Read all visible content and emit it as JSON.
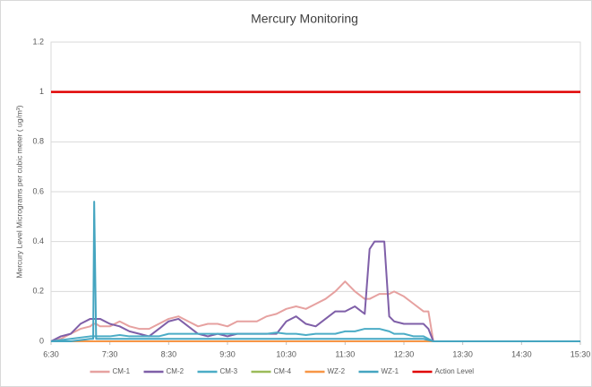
{
  "chart_data": {
    "type": "line",
    "title": "Mercury Monitoring",
    "y_label": "Mercury Level Micrograms per cubic meter ( ug/m³)",
    "x": [
      390,
      400,
      410,
      420,
      430,
      433,
      434,
      436,
      440,
      450,
      460,
      470,
      480,
      490,
      500,
      510,
      520,
      530,
      540,
      550,
      560,
      570,
      580,
      590,
      600,
      610,
      620,
      630,
      640,
      650,
      660,
      670,
      680,
      690,
      700,
      710,
      715,
      720,
      725,
      730,
      735,
      740,
      750,
      760,
      770,
      775,
      780,
      930
    ],
    "xlim": [
      390,
      930
    ],
    "xticks": [
      {
        "value": 390,
        "label": "6:30"
      },
      {
        "value": 450,
        "label": "7:30"
      },
      {
        "value": 510,
        "label": "8:30"
      },
      {
        "value": 570,
        "label": "9:30"
      },
      {
        "value": 630,
        "label": "10:30"
      },
      {
        "value": 690,
        "label": "11:30"
      },
      {
        "value": 750,
        "label": "12:30"
      },
      {
        "value": 810,
        "label": "13:30"
      },
      {
        "value": 870,
        "label": "14:30"
      },
      {
        "value": 930,
        "label": "15:30"
      }
    ],
    "ylim": [
      0,
      1.2
    ],
    "yticks": [
      0,
      0.2,
      0.4,
      0.6,
      0.8,
      1,
      1.2
    ],
    "grid": true,
    "legend": "bottom",
    "series": [
      {
        "name": "CM-1",
        "color": "#e6a1a0",
        "values": [
          0,
          0.01,
          0.03,
          0.05,
          0.06,
          0.07,
          0.07,
          0.07,
          0.06,
          0.06,
          0.08,
          0.06,
          0.05,
          0.05,
          0.07,
          0.09,
          0.1,
          0.08,
          0.06,
          0.07,
          0.07,
          0.06,
          0.08,
          0.08,
          0.08,
          0.1,
          0.11,
          0.13,
          0.14,
          0.13,
          0.15,
          0.17,
          0.2,
          0.24,
          0.2,
          0.17,
          0.17,
          0.18,
          0.19,
          0.19,
          0.19,
          0.2,
          0.18,
          0.15,
          0.12,
          0.12,
          0,
          0
        ]
      },
      {
        "name": "CM-2",
        "color": "#7f5fa8",
        "values": [
          0,
          0.02,
          0.03,
          0.07,
          0.09,
          0.09,
          0.09,
          0.09,
          0.09,
          0.07,
          0.06,
          0.04,
          0.03,
          0.02,
          0.05,
          0.08,
          0.09,
          0.06,
          0.03,
          0.02,
          0.03,
          0.02,
          0.03,
          0.03,
          0.03,
          0.03,
          0.03,
          0.08,
          0.1,
          0.07,
          0.06,
          0.09,
          0.12,
          0.12,
          0.14,
          0.11,
          0.37,
          0.4,
          0.4,
          0.4,
          0.1,
          0.08,
          0.07,
          0.07,
          0.07,
          0.05,
          0,
          0
        ]
      },
      {
        "name": "CM-3",
        "color": "#4bacc6",
        "values": [
          0,
          0.005,
          0.01,
          0.015,
          0.02,
          0.02,
          0.02,
          0.02,
          0.02,
          0.02,
          0.025,
          0.02,
          0.02,
          0.02,
          0.02,
          0.03,
          0.03,
          0.03,
          0.03,
          0.03,
          0.03,
          0.03,
          0.03,
          0.03,
          0.03,
          0.03,
          0.035,
          0.03,
          0.03,
          0.025,
          0.03,
          0.03,
          0.03,
          0.04,
          0.04,
          0.05,
          0.05,
          0.05,
          0.05,
          0.045,
          0.04,
          0.03,
          0.03,
          0.02,
          0.02,
          0.01,
          0,
          0
        ]
      },
      {
        "name": "CM-4",
        "color": "#9bbb59",
        "values": [
          0,
          0,
          0,
          0,
          0,
          0,
          0,
          0,
          0,
          0,
          0,
          0,
          0,
          0,
          0,
          0,
          0,
          0,
          0,
          0,
          0,
          0,
          0,
          0,
          0,
          0,
          0,
          0,
          0,
          0,
          0,
          0,
          0,
          0,
          0,
          0,
          0,
          0,
          0,
          0,
          0,
          0,
          0,
          0,
          0,
          0,
          0,
          0
        ]
      },
      {
        "name": "WZ-2",
        "color": "#f79646",
        "values": [
          0,
          0,
          0,
          0,
          0,
          0,
          0,
          0,
          0,
          0,
          0,
          0,
          0,
          0,
          0,
          0,
          0,
          0,
          0,
          0,
          0,
          0,
          0,
          0,
          0,
          0,
          0,
          0,
          0,
          0,
          0,
          0,
          0,
          0,
          0,
          0,
          0,
          0,
          0,
          0,
          0,
          0,
          0,
          0,
          0,
          0,
          0,
          0
        ]
      },
      {
        "name": "WZ-1",
        "color": "#45a5c0",
        "values": [
          0,
          0,
          0,
          0.005,
          0.01,
          0.01,
          0.56,
          0.01,
          0.01,
          0.01,
          0.01,
          0.01,
          0.01,
          0.01,
          0.01,
          0.01,
          0.01,
          0.01,
          0.01,
          0.01,
          0.01,
          0.01,
          0.01,
          0.01,
          0.01,
          0.01,
          0.01,
          0.01,
          0.01,
          0.01,
          0.01,
          0.01,
          0.01,
          0.01,
          0.01,
          0.01,
          0.01,
          0.01,
          0.01,
          0.01,
          0.01,
          0.01,
          0.01,
          0.01,
          0.01,
          0.005,
          0,
          0
        ]
      },
      {
        "name": "Action Level",
        "color": "#e00000",
        "values": [
          1,
          1,
          1,
          1,
          1,
          1,
          1,
          1,
          1,
          1,
          1,
          1,
          1,
          1,
          1,
          1,
          1,
          1,
          1,
          1,
          1,
          1,
          1,
          1,
          1,
          1,
          1,
          1,
          1,
          1,
          1,
          1,
          1,
          1,
          1,
          1,
          1,
          1,
          1,
          1,
          1,
          1,
          1,
          1,
          1,
          1,
          1,
          1
        ]
      }
    ]
  }
}
